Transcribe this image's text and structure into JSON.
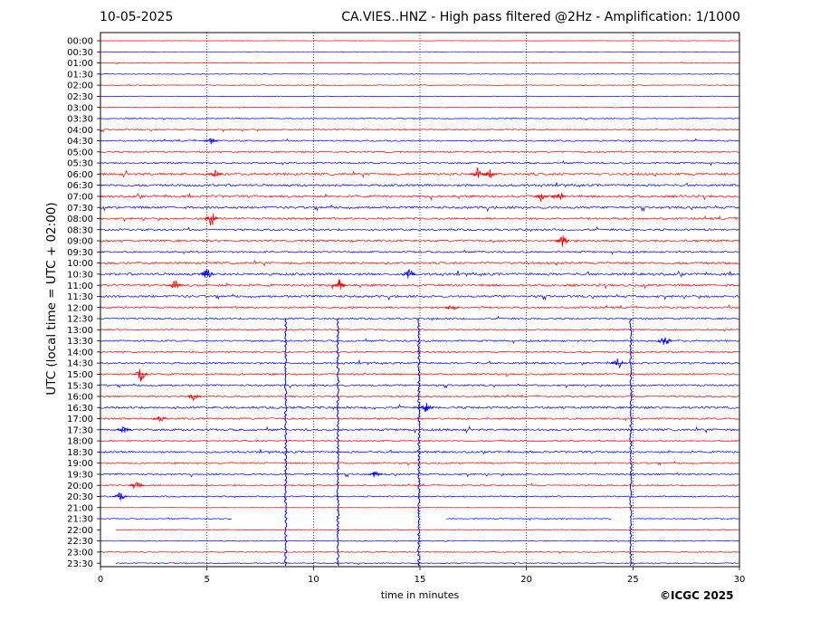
{
  "header": {
    "date": "10-05-2025",
    "title": "CA.VIES..HNZ - High pass filtered @2Hz - Amplification: 1/1000"
  },
  "footer": {
    "copyright": "©ICGC 2025"
  },
  "chart_data": {
    "type": "line",
    "title": "CA.VIES..HNZ - High pass filtered @2Hz - Amplification: 1/1000",
    "xlabel": "time in minutes",
    "ylabel": "UTC (local time = UTC + 02:00)",
    "xlim": [
      0,
      30
    ],
    "xticks": [
      0,
      5,
      10,
      15,
      20,
      25,
      30
    ],
    "grid": "vertical dotted lines at 5, 10, 15, 20, 25",
    "row_labels": [
      "00:00",
      "00:30",
      "01:00",
      "01:30",
      "02:00",
      "02:30",
      "03:00",
      "03:30",
      "04:00",
      "04:30",
      "05:00",
      "05:30",
      "06:00",
      "06:30",
      "07:00",
      "07:30",
      "08:00",
      "08:30",
      "09:00",
      "09:30",
      "10:00",
      "10:30",
      "11:00",
      "11:30",
      "12:00",
      "12:30",
      "13:00",
      "13:30",
      "14:00",
      "14:30",
      "15:00",
      "15:30",
      "16:00",
      "16:30",
      "17:00",
      "17:30",
      "18:00",
      "18:30",
      "19:00",
      "19:30",
      "20:00",
      "20:30",
      "21:00",
      "21:30",
      "22:00",
      "22:30",
      "23:00",
      "23:30"
    ],
    "colors": {
      "even_rows": "#ff0000",
      "odd_rows": "#0000ff"
    },
    "row_activity": [
      0.15,
      0.12,
      0.25,
      0.2,
      0.25,
      0.2,
      0.2,
      0.3,
      0.45,
      0.45,
      0.5,
      0.55,
      0.75,
      0.7,
      0.75,
      0.75,
      0.65,
      0.6,
      0.7,
      0.55,
      0.7,
      0.8,
      0.75,
      0.7,
      0.6,
      0.55,
      0.45,
      0.55,
      0.5,
      0.6,
      0.55,
      0.55,
      0.5,
      0.7,
      0.6,
      0.7,
      0.45,
      0.6,
      0.5,
      0.55,
      0.45,
      0.4,
      0.15,
      0.3,
      0.25,
      0.3,
      0.3,
      0.3
    ],
    "gaps": [
      {
        "row": "21:30",
        "x_ranges": [
          [
            6.2,
            16.2
          ],
          [
            24.0,
            25.0
          ]
        ]
      },
      {
        "row": "22:00",
        "x_ranges": [
          [
            0,
            0.7
          ]
        ]
      },
      {
        "row": "23:30",
        "x_ranges": [
          [
            0,
            0.7
          ]
        ]
      }
    ],
    "events": [
      {
        "row": "12:30",
        "x": 8.7,
        "extent_rows": 24
      },
      {
        "row": "12:30",
        "x": 11.15,
        "extent_rows": 24
      },
      {
        "row": "12:30",
        "x": 14.95,
        "extent_rows": 24
      },
      {
        "row": "12:30",
        "x": 24.9,
        "extent_rows": 24
      },
      {
        "row": "04:30",
        "x": 5.2,
        "amp": 0.5
      },
      {
        "row": "06:00",
        "x": 5.4,
        "amp": 0.8
      },
      {
        "row": "06:00",
        "x": 17.7,
        "amp": 1.0
      },
      {
        "row": "06:00",
        "x": 18.3,
        "amp": 0.8
      },
      {
        "row": "07:00",
        "x": 20.7,
        "amp": 0.8
      },
      {
        "row": "07:00",
        "x": 21.5,
        "amp": 1.4
      },
      {
        "row": "08:00",
        "x": 5.2,
        "amp": 1.5
      },
      {
        "row": "09:00",
        "x": 21.7,
        "amp": 1.0
      },
      {
        "row": "10:30",
        "x": 5.0,
        "amp": 1.2
      },
      {
        "row": "10:30",
        "x": 14.5,
        "amp": 1.0
      },
      {
        "row": "11:00",
        "x": 3.5,
        "amp": 0.8
      },
      {
        "row": "11:00",
        "x": 11.2,
        "amp": 1.0
      },
      {
        "row": "12:00",
        "x": 16.5,
        "amp": 0.8
      },
      {
        "row": "13:30",
        "x": 26.5,
        "amp": 1.0
      },
      {
        "row": "14:30",
        "x": 24.3,
        "amp": 1.0
      },
      {
        "row": "15:00",
        "x": 1.9,
        "amp": 1.2
      },
      {
        "row": "16:00",
        "x": 4.4,
        "amp": 0.8
      },
      {
        "row": "16:30",
        "x": 15.3,
        "amp": 0.9
      },
      {
        "row": "17:00",
        "x": 2.8,
        "amp": 0.8
      },
      {
        "row": "17:30",
        "x": 1.1,
        "amp": 0.7
      },
      {
        "row": "19:30",
        "x": 12.9,
        "amp": 0.7
      },
      {
        "row": "20:00",
        "x": 1.7,
        "amp": 1.0
      },
      {
        "row": "20:30",
        "x": 0.9,
        "amp": 1.0
      }
    ]
  }
}
